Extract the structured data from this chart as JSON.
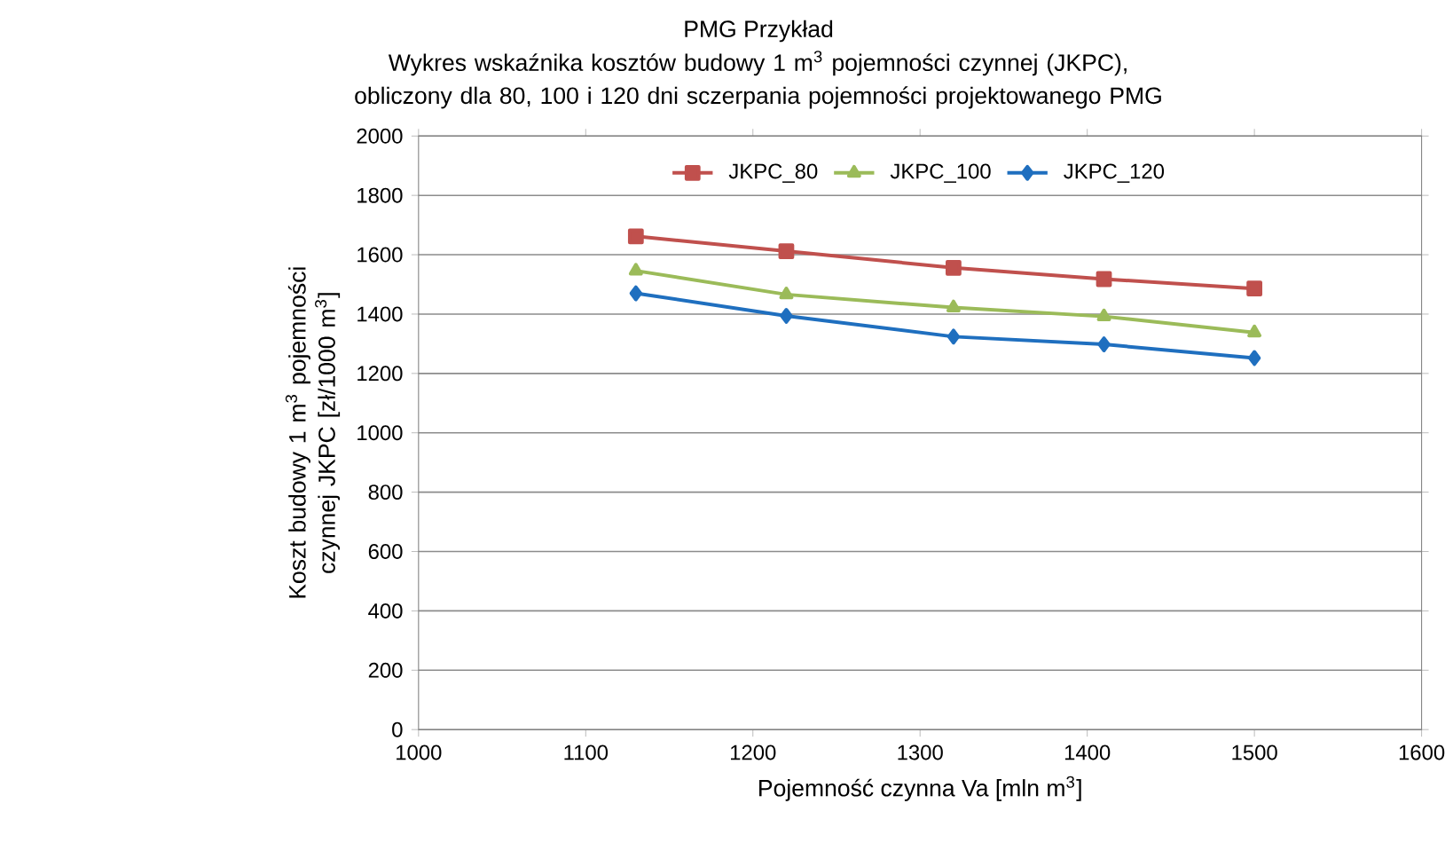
{
  "chart_data": {
    "type": "line",
    "title": "PMG Przykład",
    "subtitle": "Wykres wskaźnika kosztów budowy 1 m$^{3}$ pojemności czynnej (JKPC), obliczony dla 80, 100 i 120 dni sczerpania pojemności projektowanego PMG",
    "xlabel": "Pojemność czynna Va [mln m$^{3}$]",
    "ylabel": "Koszt budowy 1 m$^{3}$ pojemności czynnej JKPC [zł/1000 m$^{3}$]",
    "x": [
      1130,
      1220,
      1320,
      1410,
      1500
    ],
    "series": [
      {
        "name": "JKPC_80",
        "color": "#c0504d",
        "marker": "square",
        "values": [
          1662,
          1612,
          1556,
          1518,
          1486
        ]
      },
      {
        "name": "JKPC_100",
        "color": "#9bbb59",
        "marker": "triangle",
        "values": [
          1546,
          1466,
          1422,
          1392,
          1338
        ]
      },
      {
        "name": "JKPC_120",
        "color": "#1f6fbf",
        "marker": "diamond",
        "values": [
          1470,
          1394,
          1324,
          1298,
          1252
        ]
      }
    ],
    "xlim": [
      1000,
      1600
    ],
    "xticks": [
      1000,
      1100,
      1200,
      1300,
      1400,
      1500,
      1600
    ],
    "ylim": [
      0,
      2000
    ],
    "yticks": [
      0,
      200,
      400,
      600,
      800,
      1000,
      1200,
      1400,
      1600,
      1800,
      2000
    ],
    "grid": "y",
    "legend": "top",
    "line_style": "solid"
  }
}
